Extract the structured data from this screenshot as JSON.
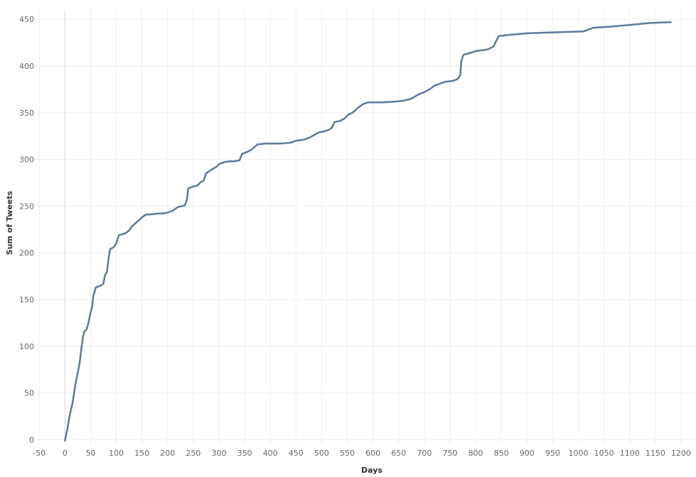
{
  "chart_data": {
    "type": "line",
    "title": "",
    "xlabel": "Days",
    "ylabel": "Sum of Tweets",
    "xlim": [
      -60,
      1225
    ],
    "ylim": [
      -5,
      460
    ],
    "xticks": [
      -50,
      0,
      50,
      100,
      150,
      200,
      250,
      300,
      350,
      400,
      450,
      500,
      550,
      600,
      650,
      700,
      750,
      800,
      850,
      900,
      950,
      1000,
      1050,
      1100,
      1150,
      1200
    ],
    "yticks": [
      0,
      50,
      100,
      150,
      200,
      250,
      300,
      350,
      400,
      450
    ],
    "grid": true,
    "legend": "none",
    "colors": {
      "line": "#5b7a9e",
      "grid": "#eeeeee",
      "zero_line": "#d5d5d5"
    },
    "series": [
      {
        "name": "",
        "points": [
          [
            0,
            -1
          ],
          [
            5,
            12
          ],
          [
            10,
            28
          ],
          [
            15,
            40
          ],
          [
            20,
            58
          ],
          [
            25,
            72
          ],
          [
            28,
            80
          ],
          [
            32,
            97
          ],
          [
            35,
            110
          ],
          [
            38,
            116
          ],
          [
            42,
            118
          ],
          [
            45,
            123
          ],
          [
            50,
            136
          ],
          [
            53,
            142
          ],
          [
            55,
            153
          ],
          [
            60,
            163
          ],
          [
            70,
            165
          ],
          [
            75,
            167
          ],
          [
            78,
            176
          ],
          [
            82,
            180
          ],
          [
            85,
            194
          ],
          [
            88,
            204
          ],
          [
            95,
            206
          ],
          [
            100,
            210
          ],
          [
            105,
            219
          ],
          [
            112,
            220
          ],
          [
            118,
            221
          ],
          [
            125,
            224
          ],
          [
            130,
            228
          ],
          [
            140,
            233
          ],
          [
            150,
            238
          ],
          [
            158,
            241
          ],
          [
            165,
            241
          ],
          [
            180,
            242
          ],
          [
            190,
            242
          ],
          [
            200,
            243
          ],
          [
            210,
            245
          ],
          [
            220,
            249
          ],
          [
            228,
            250
          ],
          [
            234,
            251
          ],
          [
            238,
            258
          ],
          [
            240,
            269
          ],
          [
            250,
            271
          ],
          [
            258,
            272
          ],
          [
            265,
            276
          ],
          [
            270,
            277
          ],
          [
            275,
            285
          ],
          [
            285,
            289
          ],
          [
            295,
            292
          ],
          [
            300,
            295
          ],
          [
            310,
            297
          ],
          [
            320,
            298
          ],
          [
            330,
            298
          ],
          [
            340,
            299
          ],
          [
            345,
            306
          ],
          [
            355,
            308
          ],
          [
            365,
            311
          ],
          [
            375,
            316
          ],
          [
            390,
            317
          ],
          [
            420,
            317
          ],
          [
            440,
            318
          ],
          [
            450,
            320
          ],
          [
            465,
            321
          ],
          [
            475,
            323
          ],
          [
            485,
            326
          ],
          [
            495,
            329
          ],
          [
            505,
            330
          ],
          [
            515,
            332
          ],
          [
            520,
            334
          ],
          [
            525,
            340
          ],
          [
            535,
            341
          ],
          [
            545,
            344
          ],
          [
            552,
            348
          ],
          [
            560,
            350
          ],
          [
            570,
            355
          ],
          [
            580,
            359
          ],
          [
            590,
            361
          ],
          [
            620,
            361
          ],
          [
            645,
            362
          ],
          [
            660,
            363
          ],
          [
            675,
            365
          ],
          [
            690,
            370
          ],
          [
            700,
            372
          ],
          [
            710,
            375
          ],
          [
            720,
            379
          ],
          [
            730,
            381
          ],
          [
            740,
            383
          ],
          [
            755,
            384
          ],
          [
            765,
            386
          ],
          [
            770,
            390
          ],
          [
            772,
            405
          ],
          [
            776,
            412
          ],
          [
            790,
            414
          ],
          [
            800,
            416
          ],
          [
            815,
            417
          ],
          [
            825,
            418
          ],
          [
            835,
            421
          ],
          [
            840,
            427
          ],
          [
            845,
            432
          ],
          [
            860,
            433
          ],
          [
            880,
            434
          ],
          [
            900,
            435
          ],
          [
            950,
            436
          ],
          [
            1010,
            437
          ],
          [
            1020,
            439
          ],
          [
            1030,
            441
          ],
          [
            1060,
            442
          ],
          [
            1100,
            444
          ],
          [
            1140,
            446
          ],
          [
            1180,
            447
          ]
        ]
      }
    ]
  }
}
